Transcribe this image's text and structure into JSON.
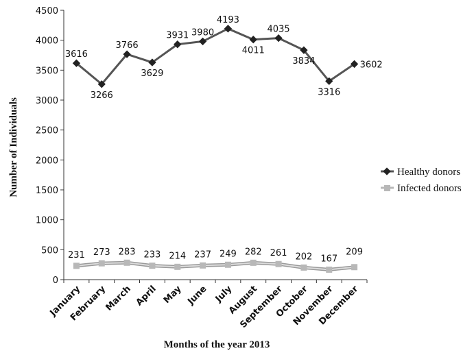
{
  "chart_data": {
    "type": "line",
    "title": "",
    "xlabel": "Months of the year 2013",
    "ylabel": "Number of Individuals",
    "ylim": [
      0,
      4500
    ],
    "yticks": [
      0,
      500,
      1000,
      1500,
      2000,
      2500,
      3000,
      3500,
      4000,
      4500
    ],
    "grid": false,
    "legend_position": "right",
    "categories": [
      "January",
      "February",
      "March",
      "April",
      "May",
      "June",
      "July",
      "August",
      "September",
      "October",
      "November",
      "December"
    ],
    "series": [
      {
        "name": "Healthy donors",
        "marker": "diamond",
        "color": "#555555",
        "values": [
          3616,
          3266,
          3766,
          3629,
          3931,
          3980,
          4193,
          4011,
          4035,
          3834,
          3316,
          3602
        ]
      },
      {
        "name": "Infected donors",
        "marker": "square",
        "color": "#b8b8b8",
        "values": [
          231,
          273,
          283,
          233,
          214,
          237,
          249,
          282,
          261,
          202,
          167,
          209
        ]
      }
    ]
  }
}
